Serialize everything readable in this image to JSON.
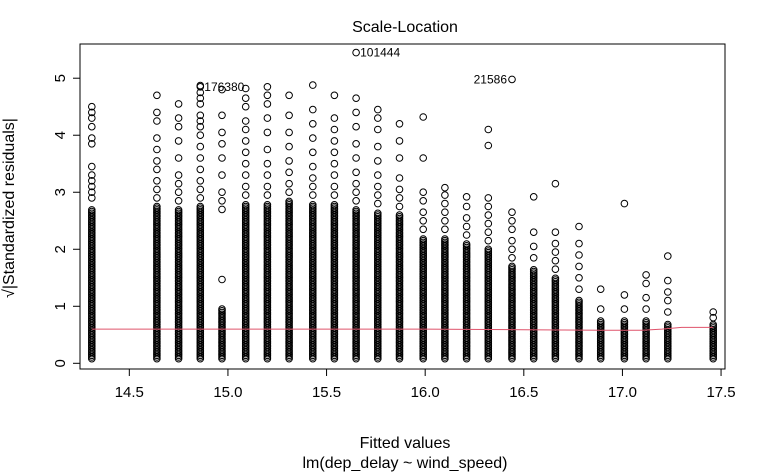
{
  "chart_data": {
    "type": "scatter",
    "title": "Scale-Location",
    "xlabel": "Fitted values",
    "xlabel_sub": "lm(dep_delay ~ wind_speed)",
    "ylabel": "√|Standardized residuals|",
    "xlim": [
      14.25,
      17.52
    ],
    "ylim": [
      -0.1,
      5.6
    ],
    "x_ticks": [
      14.5,
      15.0,
      15.5,
      16.0,
      16.5,
      17.0,
      17.5
    ],
    "x_tick_labels": [
      "14.5",
      "15.0",
      "15.5",
      "16.0",
      "16.5",
      "17.0",
      "17.5"
    ],
    "y_ticks": [
      0,
      1,
      2,
      3,
      4,
      5
    ],
    "y_tick_labels": [
      "0",
      "1",
      "2",
      "3",
      "4",
      "5"
    ],
    "point_color": "#000000",
    "smooth_color": "#df536b",
    "columns": [
      {
        "x": 14.31,
        "dense_top": 2.7,
        "outliers": [
          2.9,
          3.0,
          3.1,
          3.2,
          3.3,
          3.45,
          3.85,
          3.95,
          4.15,
          4.3,
          4.4,
          4.5
        ]
      },
      {
        "x": 14.64,
        "dense_top": 2.75,
        "outliers": [
          2.9,
          3.05,
          3.2,
          3.4,
          3.55,
          3.75,
          3.95,
          4.25,
          4.4,
          4.7
        ]
      },
      {
        "x": 14.75,
        "dense_top": 2.7,
        "outliers": [
          2.85,
          3.0,
          3.15,
          3.3,
          3.6,
          3.9,
          4.15,
          4.3,
          4.55
        ]
      },
      {
        "x": 14.86,
        "dense_top": 2.75,
        "outliers": [
          2.9,
          3.05,
          3.2,
          3.4,
          3.6,
          3.8,
          4.0,
          4.15,
          4.25,
          4.35,
          4.55,
          4.65,
          4.75,
          4.87
        ]
      },
      {
        "x": 14.97,
        "dense_top": 0.95,
        "outliers": [
          1.47,
          2.7,
          2.85,
          3.0,
          3.3,
          3.6,
          3.85,
          4.05,
          4.35,
          4.8
        ]
      },
      {
        "x": 15.09,
        "dense_top": 2.8,
        "outliers": [
          2.95,
          3.1,
          3.3,
          3.5,
          3.7,
          3.9,
          4.1,
          4.25,
          4.5,
          4.65,
          4.82
        ]
      },
      {
        "x": 15.2,
        "dense_top": 2.8,
        "outliers": [
          2.95,
          3.1,
          3.3,
          3.5,
          3.75,
          4.05,
          4.3,
          4.55,
          4.7,
          4.85
        ]
      },
      {
        "x": 15.31,
        "dense_top": 2.85,
        "outliers": [
          3.0,
          3.15,
          3.35,
          3.55,
          3.8,
          4.05,
          4.35,
          4.7
        ]
      },
      {
        "x": 15.43,
        "dense_top": 2.8,
        "outliers": [
          2.95,
          3.1,
          3.25,
          3.45,
          3.7,
          3.95,
          4.2,
          4.45,
          4.88
        ]
      },
      {
        "x": 15.54,
        "dense_top": 2.8,
        "outliers": [
          2.95,
          3.1,
          3.3,
          3.5,
          3.7,
          3.9,
          4.1,
          4.3,
          4.7
        ]
      },
      {
        "x": 15.65,
        "dense_top": 2.7,
        "outliers": [
          2.85,
          3.0,
          3.15,
          3.35,
          3.6,
          3.85,
          4.15,
          4.4,
          4.65
        ]
      },
      {
        "x": 15.76,
        "dense_top": 2.65,
        "outliers": [
          2.8,
          2.95,
          3.1,
          3.3,
          3.55,
          3.8,
          4.1,
          4.3,
          4.45
        ]
      },
      {
        "x": 15.87,
        "dense_top": 2.6,
        "outliers": [
          2.75,
          2.9,
          3.05,
          3.25,
          3.6,
          3.9,
          4.2
        ]
      },
      {
        "x": 15.99,
        "dense_top": 2.2,
        "outliers": [
          2.35,
          2.5,
          2.65,
          2.85,
          3.0,
          3.6,
          4.32
        ]
      },
      {
        "x": 16.1,
        "dense_top": 2.2,
        "outliers": [
          2.35,
          2.5,
          2.65,
          2.8,
          2.95,
          3.08
        ]
      },
      {
        "x": 16.21,
        "dense_top": 2.1,
        "outliers": [
          2.25,
          2.4,
          2.55,
          2.75,
          2.92
        ]
      },
      {
        "x": 16.32,
        "dense_top": 2.0,
        "outliers": [
          2.15,
          2.3,
          2.45,
          2.6,
          2.75,
          2.9,
          3.82,
          4.1
        ]
      },
      {
        "x": 16.44,
        "dense_top": 1.7,
        "outliers": [
          1.85,
          2.0,
          2.15,
          2.35,
          2.5,
          2.65
        ]
      },
      {
        "x": 16.55,
        "dense_top": 1.65,
        "outliers": [
          1.85,
          2.05,
          2.3,
          2.92
        ]
      },
      {
        "x": 16.66,
        "dense_top": 1.5,
        "outliers": [
          1.65,
          1.8,
          1.95,
          2.1,
          2.3,
          3.15
        ]
      },
      {
        "x": 16.78,
        "dense_top": 1.1,
        "outliers": [
          1.3,
          1.5,
          1.7,
          1.9,
          2.1,
          2.4
        ]
      },
      {
        "x": 16.89,
        "dense_top": 0.75,
        "outliers": [
          0.95,
          1.3
        ]
      },
      {
        "x": 17.01,
        "dense_top": 0.75,
        "outliers": [
          0.95,
          1.2,
          2.8
        ]
      },
      {
        "x": 17.12,
        "dense_top": 0.75,
        "outliers": [
          0.95,
          1.15,
          1.4,
          1.55
        ]
      },
      {
        "x": 17.23,
        "dense_top": 0.7,
        "outliers": [
          0.9,
          1.1,
          1.25,
          1.45,
          1.88
        ]
      },
      {
        "x": 17.46,
        "dense_top": 0.7,
        "outliers": [
          0.8,
          0.9
        ]
      }
    ],
    "extra_points": [
      {
        "x": 15.65,
        "y": 5.45
      },
      {
        "x": 16.44,
        "y": 4.98
      },
      {
        "x": 14.86,
        "y": 4.85
      }
    ],
    "smooth_line": [
      {
        "x": 14.31,
        "y": 0.6
      },
      {
        "x": 15.0,
        "y": 0.6
      },
      {
        "x": 15.5,
        "y": 0.6
      },
      {
        "x": 16.0,
        "y": 0.6
      },
      {
        "x": 16.5,
        "y": 0.59
      },
      {
        "x": 16.9,
        "y": 0.58
      },
      {
        "x": 17.1,
        "y": 0.58
      },
      {
        "x": 17.2,
        "y": 0.6
      },
      {
        "x": 17.3,
        "y": 0.63
      },
      {
        "x": 17.46,
        "y": 0.63
      }
    ],
    "annotations": [
      {
        "text": "101444",
        "x": 15.65,
        "y": 5.45
      },
      {
        "text": "21586",
        "x": 16.44,
        "y": 4.98
      },
      {
        "text": "176380",
        "x": 14.86,
        "y": 4.85
      }
    ]
  }
}
